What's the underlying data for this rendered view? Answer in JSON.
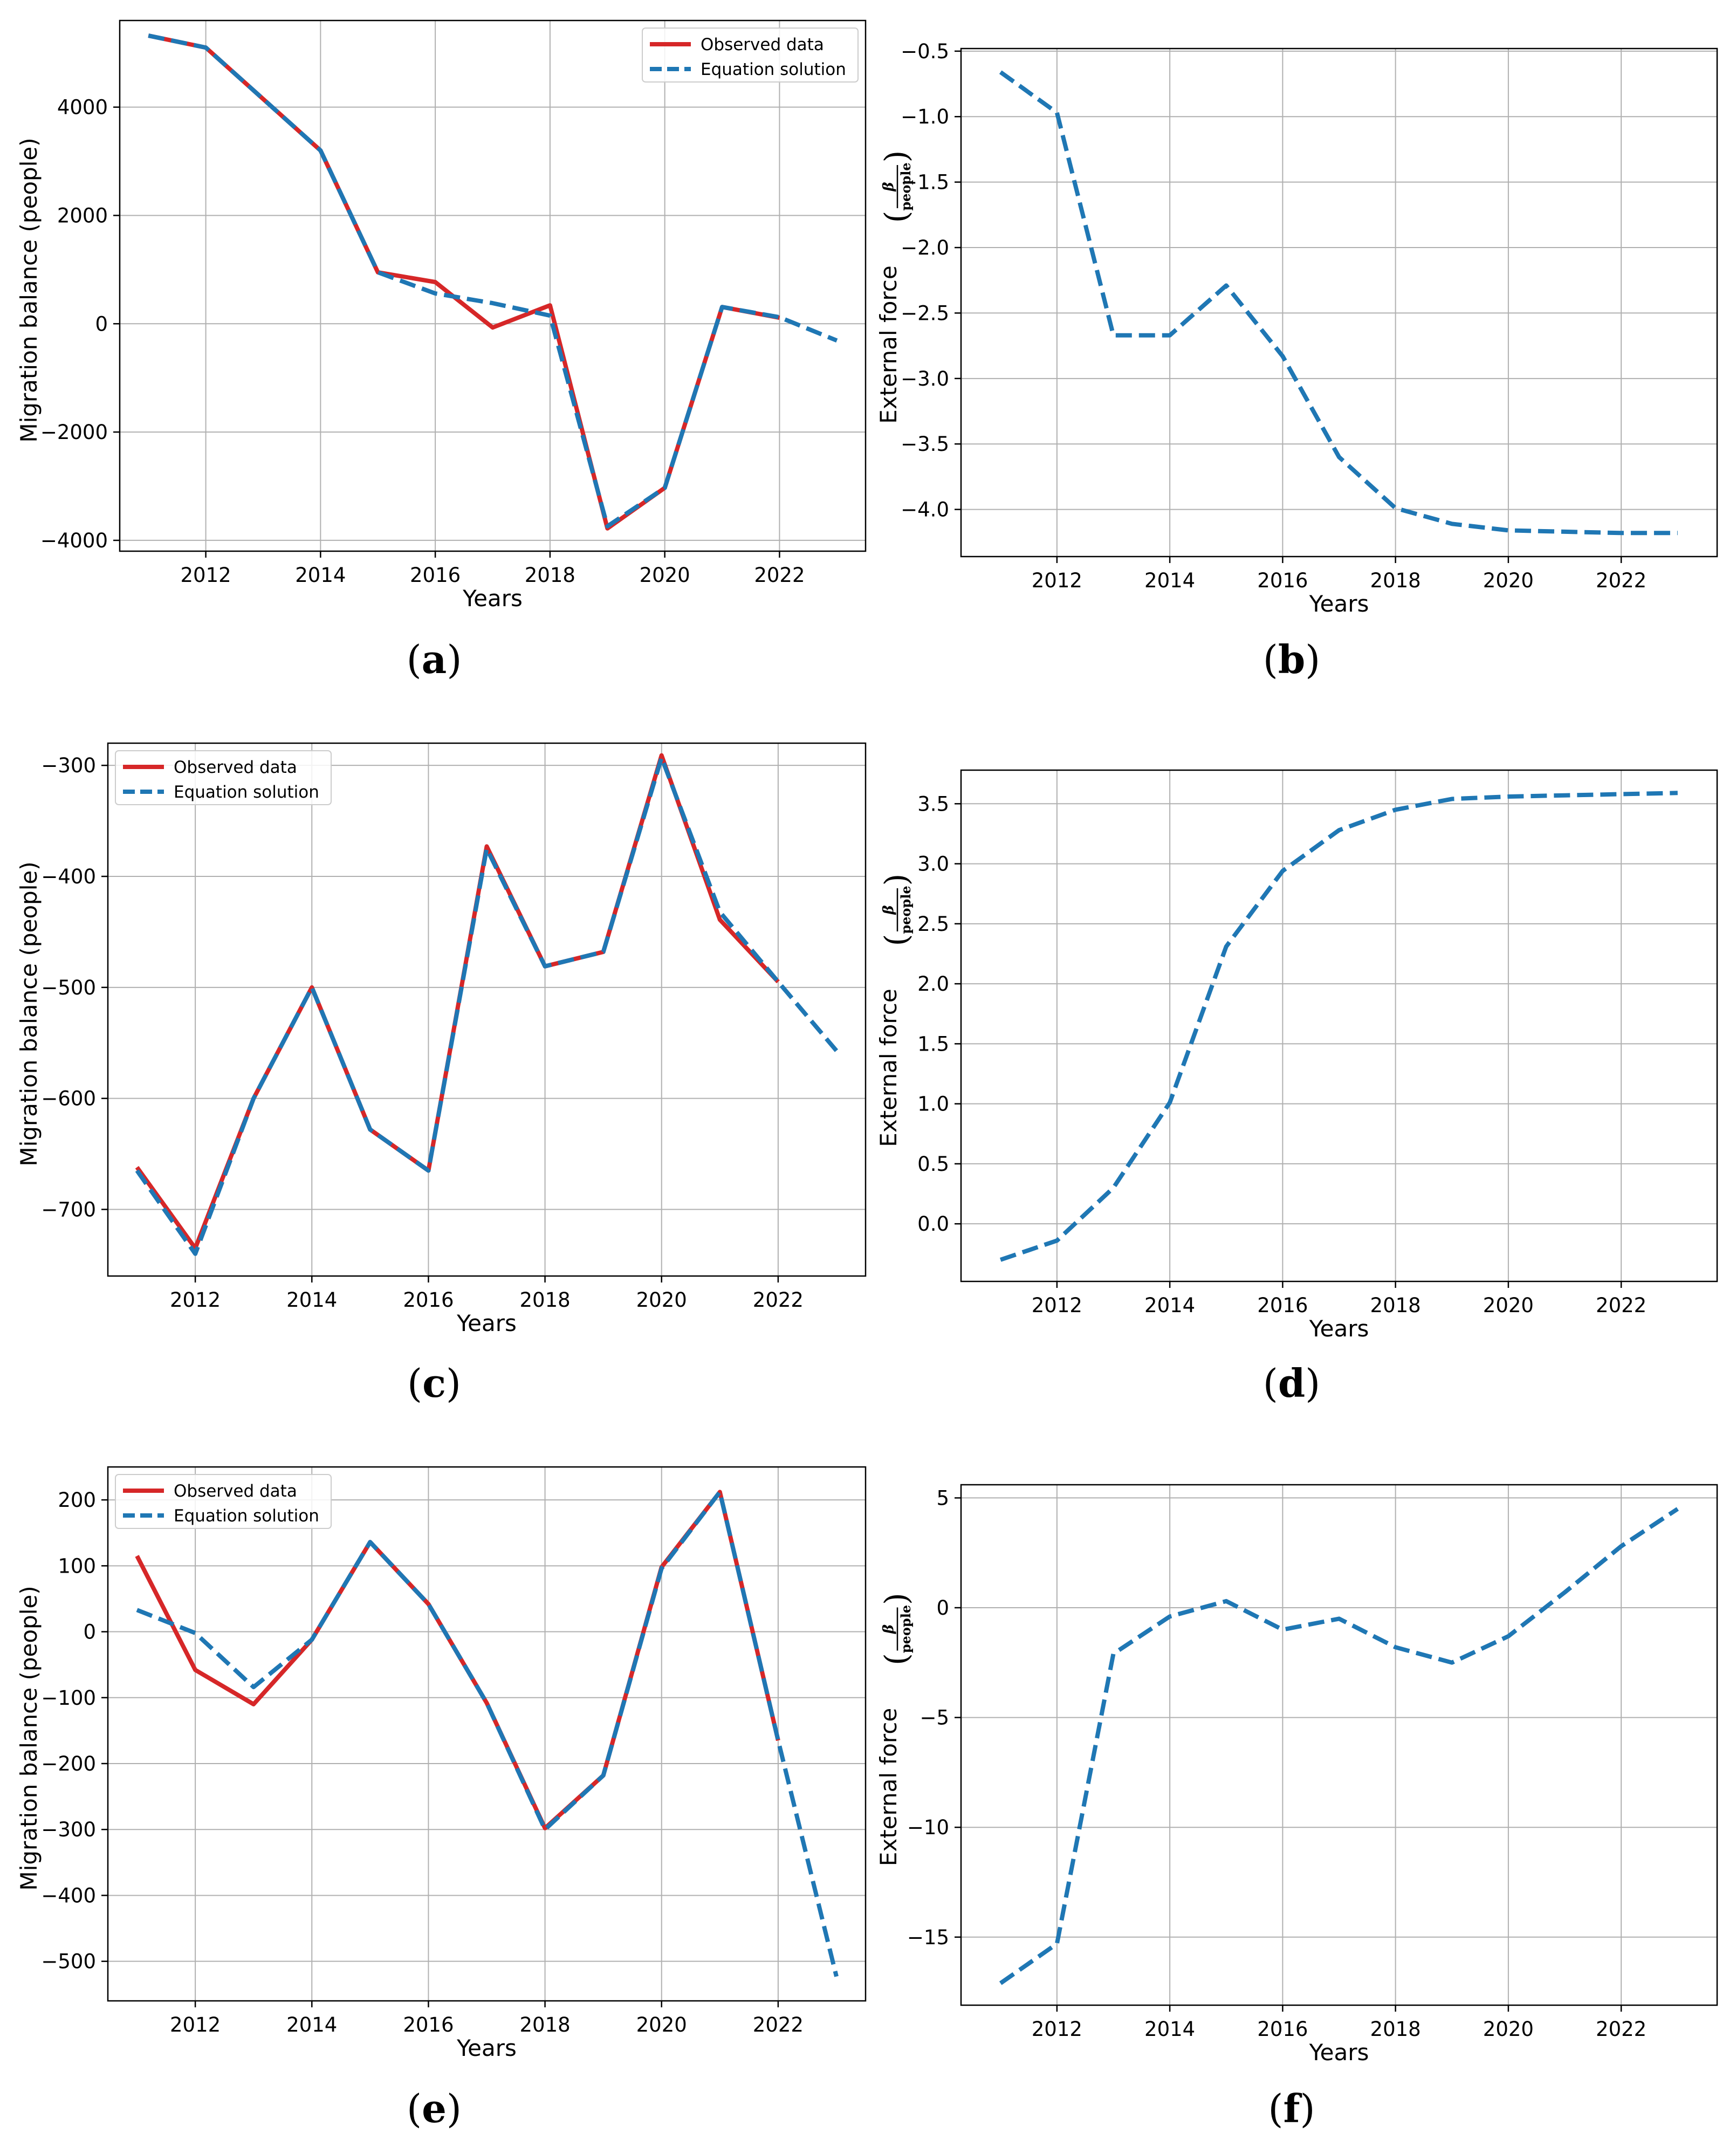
{
  "chart_data": [
    {
      "panel": "(a)",
      "type": "line",
      "xlabel": "Years",
      "ylabel": "Migration balance (people)",
      "xlim": [
        2010.5,
        2023.5
      ],
      "ylim": [
        -4200,
        5600
      ],
      "xticks": [
        2012,
        2014,
        2016,
        2018,
        2020,
        2022
      ],
      "yticks": [
        -4000,
        -2000,
        0,
        2000,
        4000
      ],
      "legend_position": "top-right",
      "series": [
        {
          "name": "Observed data",
          "color": "#d62728",
          "style": "solid",
          "x": [
            2011,
            2012,
            2013,
            2014,
            2015,
            2016,
            2017,
            2018,
            2019,
            2020,
            2021,
            2022
          ],
          "y": [
            5320,
            5100,
            4150,
            3200,
            950,
            770,
            -70,
            340,
            -3780,
            -3030,
            310,
            110
          ]
        },
        {
          "name": "Equation solution",
          "color": "#1f77b4",
          "style": "dashed",
          "x": [
            2011,
            2012,
            2013,
            2014,
            2015,
            2016,
            2017,
            2018,
            2019,
            2020,
            2021,
            2022,
            2023
          ],
          "y": [
            5320,
            5100,
            4150,
            3200,
            950,
            560,
            380,
            150,
            -3740,
            -3030,
            310,
            120,
            -310
          ]
        }
      ]
    },
    {
      "panel": "(b)",
      "type": "line",
      "xlabel": "Years",
      "ylabel": "External force",
      "ylabel_fraction": {
        "numerator": "β",
        "denominator": "people"
      },
      "xlim": [
        2010.3,
        2023.7
      ],
      "ylim": [
        -4.36,
        -0.48
      ],
      "xticks": [
        2012,
        2014,
        2016,
        2018,
        2020,
        2022
      ],
      "yticks": [
        -4.0,
        -3.5,
        -3.0,
        -2.5,
        -2.0,
        -1.5,
        -1.0,
        -0.5
      ],
      "legend_position": "none",
      "series": [
        {
          "name": "External force",
          "color": "#1f77b4",
          "style": "dashed",
          "x": [
            2011,
            2012,
            2013,
            2014,
            2015,
            2016,
            2017,
            2018,
            2019,
            2020,
            2021,
            2022,
            2023
          ],
          "y": [
            -0.66,
            -0.97,
            -2.67,
            -2.67,
            -2.29,
            -2.83,
            -3.6,
            -3.99,
            -4.11,
            -4.16,
            -4.17,
            -4.18,
            -4.18
          ]
        }
      ]
    },
    {
      "panel": "(c)",
      "type": "line",
      "xlabel": "Years",
      "ylabel": "Migration balance (people)",
      "xlim": [
        2010.5,
        2023.5
      ],
      "ylim": [
        -760,
        -280
      ],
      "xticks": [
        2012,
        2014,
        2016,
        2018,
        2020,
        2022
      ],
      "yticks": [
        -700,
        -600,
        -500,
        -400,
        -300
      ],
      "legend_position": "top-left",
      "series": [
        {
          "name": "Observed data",
          "color": "#d62728",
          "style": "solid",
          "x": [
            2011,
            2012,
            2013,
            2014,
            2015,
            2016,
            2017,
            2018,
            2019,
            2020,
            2021,
            2022
          ],
          "y": [
            -662,
            -735,
            -600,
            -500,
            -628,
            -665,
            -373,
            -481,
            -468,
            -291,
            -439,
            -495
          ]
        },
        {
          "name": "Equation solution",
          "color": "#1f77b4",
          "style": "dashed",
          "x": [
            2011,
            2012,
            2013,
            2014,
            2015,
            2016,
            2017,
            2018,
            2019,
            2020,
            2021,
            2022,
            2023
          ],
          "y": [
            -665,
            -740,
            -600,
            -500,
            -628,
            -665,
            -375,
            -481,
            -468,
            -293,
            -432,
            -495,
            -557
          ]
        }
      ]
    },
    {
      "panel": "(d)",
      "type": "line",
      "xlabel": "Years",
      "ylabel": "External force",
      "ylabel_fraction": {
        "numerator": "β",
        "denominator": "people"
      },
      "xlim": [
        2010.3,
        2023.7
      ],
      "ylim": [
        -0.48,
        3.78
      ],
      "xticks": [
        2012,
        2014,
        2016,
        2018,
        2020,
        2022
      ],
      "yticks": [
        0.0,
        0.5,
        1.0,
        1.5,
        2.0,
        2.5,
        3.0,
        3.5
      ],
      "legend_position": "none",
      "series": [
        {
          "name": "External force",
          "color": "#1f77b4",
          "style": "dashed",
          "x": [
            2011,
            2012,
            2013,
            2014,
            2015,
            2016,
            2017,
            2018,
            2019,
            2020,
            2021,
            2022,
            2023
          ],
          "y": [
            -0.3,
            -0.14,
            0.3,
            1.01,
            2.31,
            2.94,
            3.28,
            3.45,
            3.54,
            3.56,
            3.57,
            3.58,
            3.59
          ]
        }
      ]
    },
    {
      "panel": "(e)",
      "type": "line",
      "xlabel": "Years",
      "ylabel": "Migration balance (people)",
      "xlim": [
        2010.5,
        2023.5
      ],
      "ylim": [
        -560,
        250
      ],
      "xticks": [
        2012,
        2014,
        2016,
        2018,
        2020,
        2022
      ],
      "yticks": [
        -500,
        -400,
        -300,
        -200,
        -100,
        0,
        100,
        200
      ],
      "legend_position": "top-left",
      "series": [
        {
          "name": "Observed data",
          "color": "#d62728",
          "style": "solid",
          "x": [
            2011,
            2012,
            2013,
            2014,
            2015,
            2016,
            2017,
            2018,
            2019,
            2020,
            2021,
            2022
          ],
          "y": [
            115,
            -58,
            -110,
            -12,
            136,
            42,
            -108,
            -298,
            -218,
            98,
            212,
            -165
          ]
        },
        {
          "name": "Equation solution",
          "color": "#1f77b4",
          "style": "dashed",
          "x": [
            2011,
            2012,
            2013,
            2014,
            2015,
            2016,
            2017,
            2018,
            2019,
            2020,
            2021,
            2022,
            2023
          ],
          "y": [
            33,
            -2,
            -84,
            -12,
            136,
            42,
            -108,
            -300,
            -218,
            96,
            212,
            -165,
            -523
          ]
        }
      ]
    },
    {
      "panel": "(f)",
      "type": "line",
      "xlabel": "Years",
      "ylabel": "External force",
      "ylabel_fraction": {
        "numerator": "β",
        "denominator": "people"
      },
      "xlim": [
        2010.3,
        2023.7
      ],
      "ylim": [
        -18.1,
        5.6
      ],
      "xticks": [
        2012,
        2014,
        2016,
        2018,
        2020,
        2022
      ],
      "yticks": [
        -15,
        -10,
        -5,
        0,
        5
      ],
      "legend_position": "none",
      "series": [
        {
          "name": "External force",
          "color": "#1f77b4",
          "style": "dashed",
          "x": [
            2011,
            2012,
            2013,
            2014,
            2015,
            2016,
            2017,
            2018,
            2019,
            2020,
            2021,
            2022,
            2023
          ],
          "y": [
            -17.1,
            -15.3,
            -2.1,
            -0.4,
            0.3,
            -1.0,
            -0.5,
            -1.8,
            -2.5,
            -1.3,
            0.7,
            2.8,
            4.5
          ]
        }
      ]
    }
  ]
}
